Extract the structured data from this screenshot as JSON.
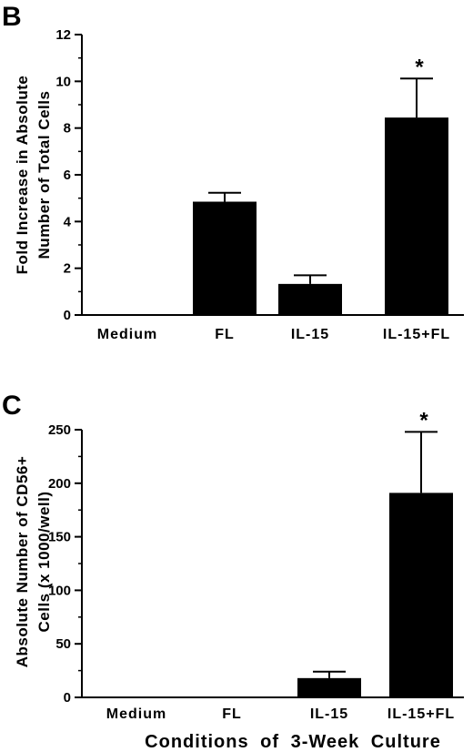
{
  "chart_data": [
    {
      "type": "bar",
      "panel": "B",
      "categories": [
        "Medium",
        "FL",
        "IL-15",
        "IL-15+FL"
      ],
      "values": [
        0,
        4.85,
        1.33,
        8.45
      ],
      "errors": [
        0,
        0.38,
        0.37,
        1.67
      ],
      "significance": [
        "",
        "",
        "",
        "*"
      ],
      "ylabel_lines": [
        "Fold Increase in Absolute",
        "Number of Total Cells"
      ],
      "xlabel": "",
      "ylim": [
        0,
        12
      ],
      "yticks": [
        0,
        2,
        4,
        6,
        8,
        10,
        12
      ],
      "grid": false,
      "bar_color": "#000000"
    },
    {
      "type": "bar",
      "panel": "C",
      "categories": [
        "Medium",
        "FL",
        "IL-15",
        "IL-15+FL"
      ],
      "values": [
        0,
        0,
        18,
        191
      ],
      "errors": [
        0,
        0,
        6,
        57
      ],
      "significance": [
        "",
        "",
        "",
        "*"
      ],
      "ylabel_lines": [
        "Absolute Number of CD56+",
        "Cells (x 1000/well)"
      ],
      "xlabel": "Conditions of 3-Week Culture",
      "ylim": [
        0,
        250
      ],
      "yticks": [
        0,
        50,
        100,
        150,
        200,
        250
      ],
      "grid": false,
      "bar_color": "#000000"
    }
  ]
}
